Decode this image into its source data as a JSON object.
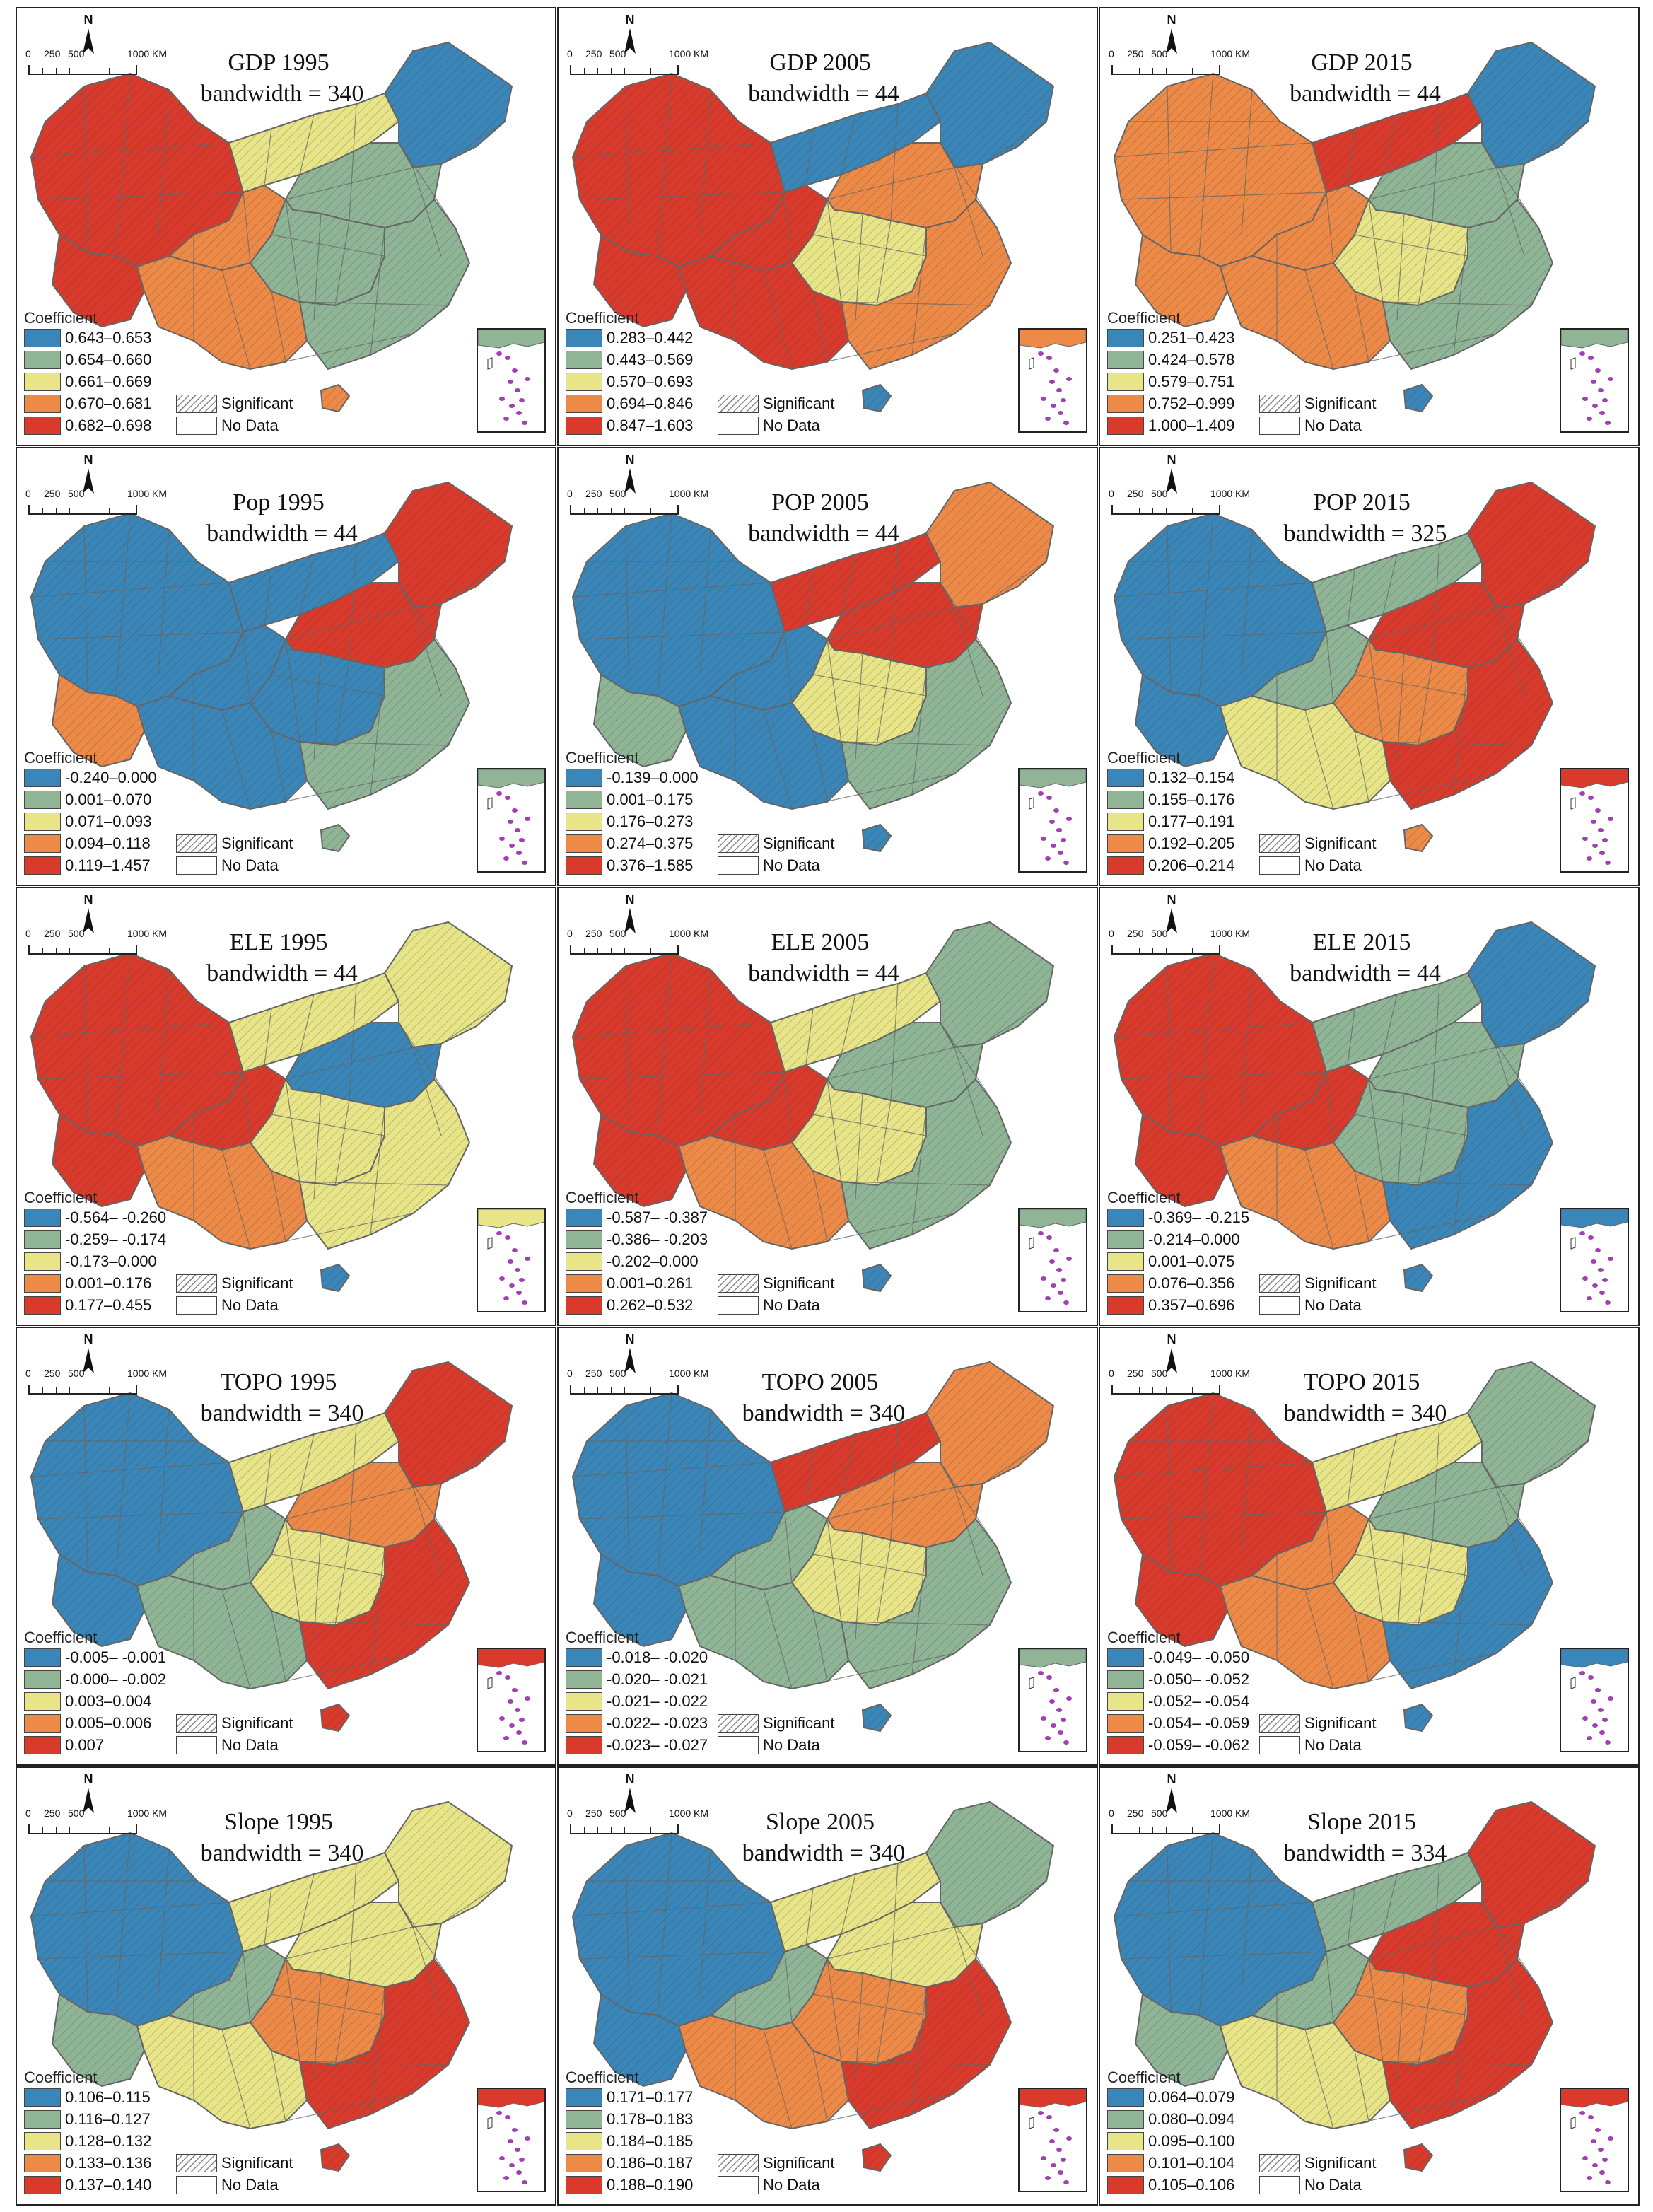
{
  "common": {
    "legend_title": "Coefficient",
    "significant_label": "Significant",
    "no_data_label": "No Data",
    "north_label": "N",
    "scale_labels": [
      "0",
      "250",
      "500",
      "1000 KM"
    ]
  },
  "colors": {
    "class_1": "#3a86b8",
    "class_2": "#8fb596",
    "class_3": "#e8e588",
    "class_4": "#ee8a47",
    "class_5": "#d93a2c",
    "boundary": "#666666",
    "inset_islands": "#a23fb5"
  },
  "panels": [
    {
      "title": "GDP  1995",
      "bandwidth": "bandwidth = 340",
      "legend": [
        "0.643–0.653",
        "0.654–0.660",
        "0.661–0.669",
        "0.670–0.681",
        "0.682–0.698"
      ],
      "regions": {
        "west": 5,
        "tibet_south": 5,
        "qinghai_gansu": 4,
        "inner_mongolia": 3,
        "northeast": 1,
        "north_china": 2,
        "central": 2,
        "southwest": 4,
        "southeast": 2,
        "hainan": 4
      }
    },
    {
      "title": "GDP  2005",
      "bandwidth": "bandwidth = 44",
      "legend": [
        "0.283–0.442",
        "0.443–0.569",
        "0.570–0.693",
        "0.694–0.846",
        "0.847–1.603"
      ],
      "regions": {
        "west": 5,
        "tibet_south": 5,
        "qinghai_gansu": 5,
        "inner_mongolia": 1,
        "northeast": 1,
        "north_china": 4,
        "central": 3,
        "southwest": 5,
        "southeast": 4,
        "hainan": 1
      }
    },
    {
      "title": "GDP  2015",
      "bandwidth": "bandwidth = 44",
      "legend": [
        "0.251–0.423",
        "0.424–0.578",
        "0.579–0.751",
        "0.752–0.999",
        "1.000–1.409"
      ],
      "regions": {
        "west": 4,
        "tibet_south": 4,
        "qinghai_gansu": 4,
        "inner_mongolia": 5,
        "northeast": 1,
        "north_china": 2,
        "central": 3,
        "southwest": 4,
        "southeast": 2,
        "hainan": 1
      }
    },
    {
      "title": "Pop  1995",
      "bandwidth": "bandwidth = 44",
      "legend": [
        "-0.240–0.000",
        "0.001–0.070",
        "0.071–0.093",
        "0.094–0.118",
        "0.119–1.457"
      ],
      "regions": {
        "west": 1,
        "tibet_south": 4,
        "qinghai_gansu": 1,
        "inner_mongolia": 1,
        "northeast": 5,
        "north_china": 5,
        "central": 1,
        "southwest": 1,
        "southeast": 2,
        "hainan": 2
      }
    },
    {
      "title": "POP  2005",
      "bandwidth": "bandwidth = 44",
      "legend": [
        "-0.139–0.000",
        "0.001–0.175",
        "0.176–0.273",
        "0.274–0.375",
        "0.376–1.585"
      ],
      "regions": {
        "west": 1,
        "tibet_south": 2,
        "qinghai_gansu": 1,
        "inner_mongolia": 5,
        "northeast": 4,
        "north_china": 5,
        "central": 3,
        "southwest": 1,
        "southeast": 2,
        "hainan": 1
      }
    },
    {
      "title": "POP  2015",
      "bandwidth": "bandwidth = 325",
      "legend": [
        "0.132–0.154",
        "0.155–0.176",
        "0.177–0.191",
        "0.192–0.205",
        "0.206–0.214"
      ],
      "regions": {
        "west": 1,
        "tibet_south": 1,
        "qinghai_gansu": 2,
        "inner_mongolia": 2,
        "northeast": 5,
        "north_china": 5,
        "central": 4,
        "southwest": 3,
        "southeast": 5,
        "hainan": 4
      }
    },
    {
      "title": "ELE  1995",
      "bandwidth": "bandwidth = 44",
      "legend": [
        "-0.564– -0.260",
        "-0.259– -0.174",
        "-0.173–0.000",
        "0.001–0.176",
        "0.177–0.455"
      ],
      "regions": {
        "west": 5,
        "tibet_south": 5,
        "qinghai_gansu": 5,
        "inner_mongolia": 3,
        "northeast": 3,
        "north_china": 1,
        "central": 3,
        "southwest": 4,
        "southeast": 3,
        "hainan": 1
      }
    },
    {
      "title": "ELE  2005",
      "bandwidth": "bandwidth = 44",
      "legend": [
        "-0.587– -0.387",
        "-0.386– -0.203",
        "-0.202–0.000",
        "0.001–0.261",
        "0.262–0.532"
      ],
      "regions": {
        "west": 5,
        "tibet_south": 5,
        "qinghai_gansu": 5,
        "inner_mongolia": 3,
        "northeast": 2,
        "north_china": 2,
        "central": 3,
        "southwest": 4,
        "southeast": 2,
        "hainan": 1
      }
    },
    {
      "title": "ELE  2015",
      "bandwidth": "bandwidth = 44",
      "legend": [
        "-0.369– -0.215",
        "-0.214–0.000",
        "0.001–0.075",
        "0.076–0.356",
        "0.357–0.696"
      ],
      "regions": {
        "west": 5,
        "tibet_south": 5,
        "qinghai_gansu": 5,
        "inner_mongolia": 2,
        "northeast": 1,
        "north_china": 2,
        "central": 2,
        "southwest": 4,
        "southeast": 1,
        "hainan": 1
      }
    },
    {
      "title": "TOPO  1995",
      "bandwidth": "bandwidth = 340",
      "legend": [
        "-0.005– -0.001",
        "-0.000– -0.002",
        "0.003–0.004",
        "0.005–0.006",
        "0.007"
      ],
      "regions": {
        "west": 1,
        "tibet_south": 1,
        "qinghai_gansu": 2,
        "inner_mongolia": 3,
        "northeast": 5,
        "north_china": 4,
        "central": 3,
        "southwest": 2,
        "southeast": 5,
        "hainan": 5
      }
    },
    {
      "title": "TOPO  2005",
      "bandwidth": "bandwidth = 340",
      "legend": [
        "-0.018– -0.020",
        "-0.020– -0.021",
        "-0.021– -0.022",
        "-0.022– -0.023",
        "-0.023– -0.027"
      ],
      "regions": {
        "west": 1,
        "tibet_south": 1,
        "qinghai_gansu": 2,
        "inner_mongolia": 5,
        "northeast": 4,
        "north_china": 4,
        "central": 3,
        "southwest": 2,
        "southeast": 2,
        "hainan": 1
      }
    },
    {
      "title": "TOPO  2015",
      "bandwidth": "bandwidth = 340",
      "legend": [
        "-0.049– -0.050",
        "-0.050– -0.052",
        "-0.052– -0.054",
        "-0.054– -0.059",
        "-0.059– -0.062"
      ],
      "regions": {
        "west": 5,
        "tibet_south": 5,
        "qinghai_gansu": 4,
        "inner_mongolia": 3,
        "northeast": 2,
        "north_china": 2,
        "central": 3,
        "southwest": 4,
        "southeast": 1,
        "hainan": 1
      }
    },
    {
      "title": "Slope  1995",
      "bandwidth": "bandwidth = 340",
      "legend": [
        "0.106–0.115",
        "0.116–0.127",
        "0.128–0.132",
        "0.133–0.136",
        "0.137–0.140"
      ],
      "regions": {
        "west": 1,
        "tibet_south": 2,
        "qinghai_gansu": 2,
        "inner_mongolia": 3,
        "northeast": 3,
        "north_china": 3,
        "central": 4,
        "southwest": 3,
        "southeast": 5,
        "hainan": 5
      }
    },
    {
      "title": "Slope  2005",
      "bandwidth": "bandwidth = 340",
      "legend": [
        "0.171–0.177",
        "0.178–0.183",
        "0.184–0.185",
        "0.186–0.187",
        "0.188–0.190"
      ],
      "regions": {
        "west": 1,
        "tibet_south": 1,
        "qinghai_gansu": 2,
        "inner_mongolia": 3,
        "northeast": 2,
        "north_china": 3,
        "central": 4,
        "southwest": 4,
        "southeast": 5,
        "hainan": 5
      }
    },
    {
      "title": "Slope  2015",
      "bandwidth": "bandwidth = 334",
      "legend": [
        "0.064–0.079",
        "0.080–0.094",
        "0.095–0.100",
        "0.101–0.104",
        "0.105–0.106"
      ],
      "regions": {
        "west": 1,
        "tibet_south": 2,
        "qinghai_gansu": 2,
        "inner_mongolia": 2,
        "northeast": 5,
        "north_china": 5,
        "central": 4,
        "southwest": 3,
        "southeast": 5,
        "hainan": 5
      }
    }
  ]
}
